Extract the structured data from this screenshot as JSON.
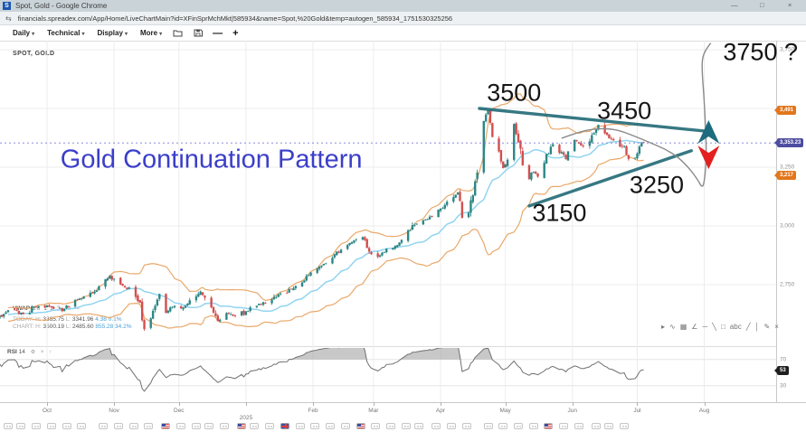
{
  "window": {
    "title": "Spot, Gold - Google Chrome",
    "favicon_letter": "S",
    "controls": [
      "—",
      "□",
      "×"
    ]
  },
  "browser": {
    "tab_icon": "⇆",
    "url": "financials.spreadex.com/App/Home/LiveChartMain?id=XFinSprMchMkt|585934&name=Spot,%20Gold&temp=autogen_585934_1751530325256"
  },
  "toolbar": {
    "caret": "▾",
    "menus": [
      {
        "label": "Daily"
      },
      {
        "label": "Technical"
      },
      {
        "label": "Display"
      },
      {
        "label": "More"
      }
    ],
    "zoom_out": "—",
    "zoom_in": "+"
  },
  "chart": {
    "symbol": "SPOT, GOLD",
    "vwap_row": {
      "label": "VWAP",
      "params": "20 1 2 3",
      "gear": "⚙",
      "close": "×"
    },
    "today_row": {
      "label": "TODAY:",
      "h_label": "H:",
      "high": "3365.75",
      "l_label": "L:",
      "low": "3341.96",
      "change": "4.38",
      "change_pct": "0.1%"
    },
    "chart_row": {
      "label": "CHART:",
      "h_label": "H:",
      "high": "3500.19",
      "l_label": "L:",
      "low": "2485.60",
      "change": "855.28",
      "change_pct": "34.2%"
    },
    "rsi_row": {
      "label": "RSI",
      "period": "14",
      "gear": "⚙",
      "close": "×",
      "expand": "↑"
    }
  },
  "axis": {
    "price_ticks": [
      {
        "label": "3,750",
        "price": 3750
      },
      {
        "label": "3,250",
        "price": 3250
      },
      {
        "label": "3,000",
        "price": 3000
      },
      {
        "label": "2,750",
        "price": 2750
      }
    ],
    "badges": [
      {
        "label": "3,491",
        "price": 3491,
        "style": "orange"
      },
      {
        "label": "3,353.23",
        "price": 3353.23,
        "style": "indigo"
      },
      {
        "label": "3,217",
        "price": 3217,
        "style": "orange"
      }
    ],
    "rsi_ticks": [
      {
        "label": "70",
        "value": 70
      },
      {
        "label": "30",
        "value": 30
      }
    ],
    "rsi_badge": {
      "label": "53",
      "value": 53
    }
  },
  "timeline": {
    "months": [
      {
        "label": "Oct",
        "day": 0
      },
      {
        "label": "Nov",
        "day": 31
      },
      {
        "label": "Dec",
        "day": 61
      },
      {
        "label": "2025",
        "day": 92,
        "year": true
      },
      {
        "label": "Feb",
        "day": 123
      },
      {
        "label": "Mar",
        "day": 151
      },
      {
        "label": "Apr",
        "day": 182
      },
      {
        "label": "May",
        "day": 212
      },
      {
        "label": "Jun",
        "day": 243
      },
      {
        "label": "Jul",
        "day": 273
      },
      {
        "label": "Aug",
        "day": 304
      }
    ],
    "events": [
      {
        "d": -18,
        "t": "cal"
      },
      {
        "d": -12,
        "t": "cal"
      },
      {
        "d": -5,
        "t": "cal"
      },
      {
        "d": 2,
        "t": "cal"
      },
      {
        "d": 9,
        "t": "cal"
      },
      {
        "d": 16,
        "t": "cal"
      },
      {
        "d": 26,
        "t": "cal"
      },
      {
        "d": 33,
        "t": "cal"
      },
      {
        "d": 40,
        "t": "cal"
      },
      {
        "d": 47,
        "t": "cal"
      },
      {
        "d": 55,
        "t": "us"
      },
      {
        "d": 62,
        "t": "cal"
      },
      {
        "d": 69,
        "t": "cal"
      },
      {
        "d": 75,
        "t": "cal"
      },
      {
        "d": 82,
        "t": "cal"
      },
      {
        "d": 90,
        "t": "us"
      },
      {
        "d": 96,
        "t": "cal"
      },
      {
        "d": 103,
        "t": "cal"
      },
      {
        "d": 110,
        "t": "uk"
      },
      {
        "d": 117,
        "t": "cal"
      },
      {
        "d": 124,
        "t": "cal"
      },
      {
        "d": 131,
        "t": "cal"
      },
      {
        "d": 138,
        "t": "cal"
      },
      {
        "d": 145,
        "t": "us"
      },
      {
        "d": 152,
        "t": "cal"
      },
      {
        "d": 159,
        "t": "cal"
      },
      {
        "d": 166,
        "t": "cal"
      },
      {
        "d": 172,
        "t": "cal"
      },
      {
        "d": 180,
        "t": "cal"
      },
      {
        "d": 187,
        "t": "cal"
      },
      {
        "d": 194,
        "t": "cal"
      },
      {
        "d": 204,
        "t": "cal"
      },
      {
        "d": 211,
        "t": "cal"
      },
      {
        "d": 218,
        "t": "cal"
      },
      {
        "d": 225,
        "t": "cal"
      },
      {
        "d": 232,
        "t": "us"
      },
      {
        "d": 239,
        "t": "cal"
      },
      {
        "d": 246,
        "t": "cal"
      },
      {
        "d": 254,
        "t": "cal"
      },
      {
        "d": 260,
        "t": "cal"
      },
      {
        "d": 267,
        "t": "cal"
      }
    ]
  },
  "drawtools": {
    "items": [
      "▸",
      "∿",
      "▦",
      "∠",
      "─",
      "╲",
      "□",
      "abc",
      "╱",
      "│",
      "✎",
      "×"
    ]
  },
  "colors": {
    "candle_up": "#2d8686",
    "candle_down": "#d24f4f",
    "bollinger": "#e9a86a",
    "ma": "#92d4f0",
    "trendline": "#256d79",
    "projection": "#8a8a8a",
    "current_line": "#7a7ad8",
    "annotation_blue": "#3b3ec9",
    "arrow_up": "#1d6b7e",
    "arrow_down": "#e3201f",
    "rsi_line": "#707070",
    "rsi_fill": "#9a9a9a",
    "grid": "#ececec"
  },
  "chart_data": {
    "type": "candlestick",
    "instrument": "Spot Gold",
    "timeframe": "Daily",
    "current_price": 3353.23,
    "y_ticks": [
      3750,
      3500,
      3250,
      3000,
      2750
    ],
    "rsi_levels": [
      70,
      30
    ],
    "day_range": [
      -44,
      276
    ],
    "indicators": {
      "ma_period": 20,
      "boll_period": 20,
      "boll_k": 2,
      "rsi_period": 14
    },
    "close_anchors": [
      [
        -44,
        2585
      ],
      [
        -38,
        2642
      ],
      [
        -30,
        2630
      ],
      [
        -24,
        2600
      ],
      [
        -18,
        2640
      ],
      [
        -10,
        2625
      ],
      [
        -6,
        2655
      ],
      [
        0,
        2662
      ],
      [
        5,
        2640
      ],
      [
        10,
        2662
      ],
      [
        16,
        2692
      ],
      [
        22,
        2722
      ],
      [
        29,
        2786
      ],
      [
        33,
        2752
      ],
      [
        38,
        2736
      ],
      [
        42,
        2690
      ],
      [
        45,
        2565
      ],
      [
        48,
        2622
      ],
      [
        52,
        2706
      ],
      [
        55,
        2632
      ],
      [
        59,
        2656
      ],
      [
        63,
        2652
      ],
      [
        68,
        2692
      ],
      [
        71,
        2722
      ],
      [
        75,
        2662
      ],
      [
        79,
        2596
      ],
      [
        83,
        2632
      ],
      [
        87,
        2616
      ],
      [
        91,
        2632
      ],
      [
        96,
        2656
      ],
      [
        101,
        2674
      ],
      [
        106,
        2706
      ],
      [
        111,
        2722
      ],
      [
        116,
        2752
      ],
      [
        122,
        2802
      ],
      [
        127,
        2832
      ],
      [
        132,
        2872
      ],
      [
        137,
        2912
      ],
      [
        142,
        2936
      ],
      [
        146,
        2952
      ],
      [
        149,
        2886
      ],
      [
        152,
        2858
      ],
      [
        156,
        2892
      ],
      [
        160,
        2914
      ],
      [
        164,
        2942
      ],
      [
        168,
        2986
      ],
      [
        172,
        3024
      ],
      [
        176,
        3032
      ],
      [
        180,
        3050
      ],
      [
        184,
        3086
      ],
      [
        188,
        3126
      ],
      [
        190,
        3136
      ],
      [
        193,
        2992
      ],
      [
        196,
        3092
      ],
      [
        199,
        3232
      ],
      [
        202,
        3424
      ],
      [
        204,
        3500
      ],
      [
        206,
        3386
      ],
      [
        208,
        3332
      ],
      [
        211,
        3242
      ],
      [
        214,
        3312
      ],
      [
        216,
        3432
      ],
      [
        219,
        3316
      ],
      [
        222,
        3186
      ],
      [
        225,
        3232
      ],
      [
        228,
        3206
      ],
      [
        231,
        3302
      ],
      [
        234,
        3346
      ],
      [
        237,
        3322
      ],
      [
        240,
        3292
      ],
      [
        243,
        3384
      ],
      [
        246,
        3356
      ],
      [
        249,
        3326
      ],
      [
        252,
        3386
      ],
      [
        255,
        3433
      ],
      [
        258,
        3390
      ],
      [
        261,
        3374
      ],
      [
        264,
        3352
      ],
      [
        267,
        3330
      ],
      [
        270,
        3274
      ],
      [
        272,
        3292
      ],
      [
        274,
        3332
      ],
      [
        276,
        3353.23
      ]
    ],
    "trendlines": [
      {
        "d1": 200,
        "p1": 3500,
        "d2": 305,
        "p2": 3403
      },
      {
        "d1": 223,
        "p1": 3085,
        "d2": 298,
        "p2": 3320
      }
    ],
    "projection": [
      [
        238,
        3373
      ],
      [
        246,
        3400
      ],
      [
        254,
        3415
      ],
      [
        263,
        3412
      ],
      [
        271,
        3385
      ],
      [
        279,
        3354
      ],
      [
        286,
        3327
      ],
      [
        292,
        3292
      ],
      [
        297,
        3246
      ],
      [
        301,
        3196
      ],
      [
        303,
        3162
      ],
      [
        304,
        3186
      ],
      [
        305,
        3288
      ],
      [
        304.6,
        3423
      ],
      [
        303.8,
        3558
      ],
      [
        303,
        3654
      ],
      [
        303,
        3712
      ],
      [
        304.6,
        3750
      ],
      [
        307,
        3778
      ]
    ],
    "arrows": [
      {
        "dir": "up",
        "day": 306,
        "price": 3400
      },
      {
        "dir": "down",
        "day": 306,
        "price": 3292
      }
    ],
    "annotations": [
      {
        "text": "3500",
        "day": 216,
        "price": 3565,
        "cls": "num"
      },
      {
        "text": "3450",
        "day": 267,
        "price": 3489,
        "cls": "num"
      },
      {
        "text": "3250",
        "day": 282,
        "price": 3173,
        "cls": "num"
      },
      {
        "text": "3150",
        "day": 237,
        "price": 3054,
        "cls": "num"
      },
      {
        "text": "3750 ?",
        "day": 330,
        "price": 3740,
        "cls": "num"
      },
      {
        "text": "Gold Continuation Pattern",
        "day": 76,
        "price": 3281,
        "cls": "pattern"
      }
    ]
  }
}
